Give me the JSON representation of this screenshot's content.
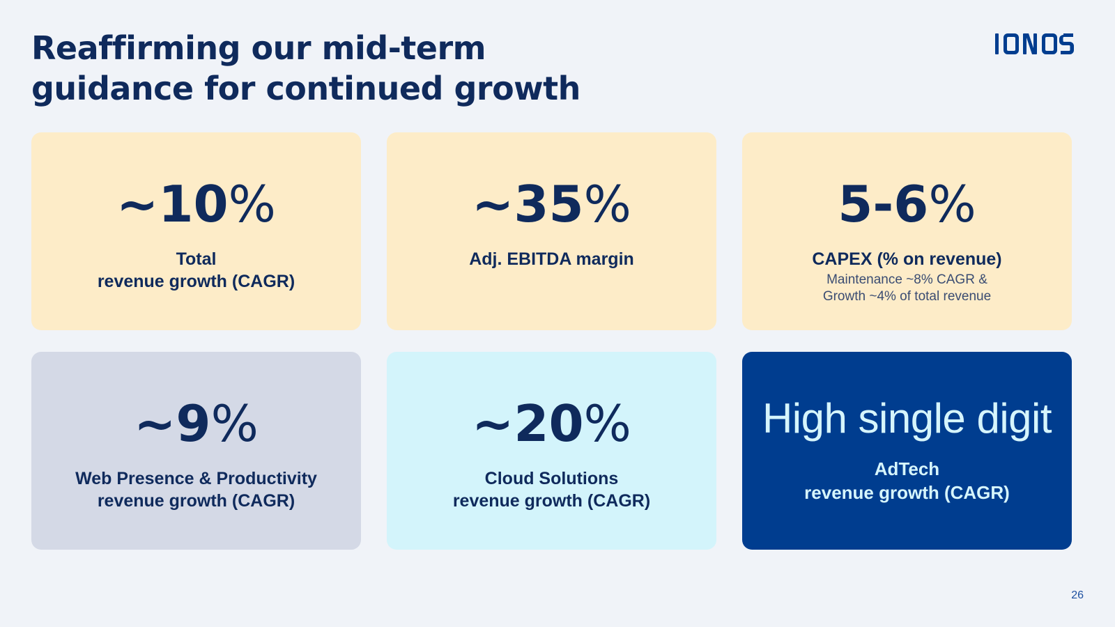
{
  "title": {
    "line1": "Reaffirming our mid-term",
    "line2": "guidance for continued growth"
  },
  "logo": {
    "text": "IONOS",
    "icon": "ionos-logo"
  },
  "colors": {
    "background": "#f0f3f8",
    "navy_text": "#0f2a5c",
    "card_yellow": "#fdecc8",
    "card_grey": "#d4d9e6",
    "card_cyan": "#d3f4fb",
    "card_navy": "#003d8f",
    "card_navy_text": "#d6f5fc",
    "logo_blue": "#003d8f"
  },
  "cards": [
    {
      "value_num": "~10",
      "value_pct": "%",
      "label_lines": [
        "Total",
        "revenue growth (CAGR)"
      ],
      "note_lines": []
    },
    {
      "value_num": "~35",
      "value_pct": "%",
      "label_lines": [
        "Adj. EBITDA margin"
      ],
      "note_lines": []
    },
    {
      "value_num": "5-6",
      "value_pct": "%",
      "label_lines": [
        "CAPEX (% on revenue)"
      ],
      "note_lines": [
        "Maintenance ~8% CAGR &",
        "Growth ~4% of total revenue"
      ]
    },
    {
      "value_num": "~9",
      "value_pct": "%",
      "label_lines": [
        "Web Presence & Productivity",
        "revenue growth (CAGR)"
      ],
      "note_lines": []
    },
    {
      "value_num": "~20",
      "value_pct": "%",
      "label_lines": [
        "Cloud Solutions",
        "revenue growth (CAGR)"
      ],
      "note_lines": []
    },
    {
      "value_text": "High single digit",
      "label_lines": [
        "AdTech",
        "revenue growth (CAGR)"
      ],
      "note_lines": []
    }
  ],
  "page_number": "26"
}
